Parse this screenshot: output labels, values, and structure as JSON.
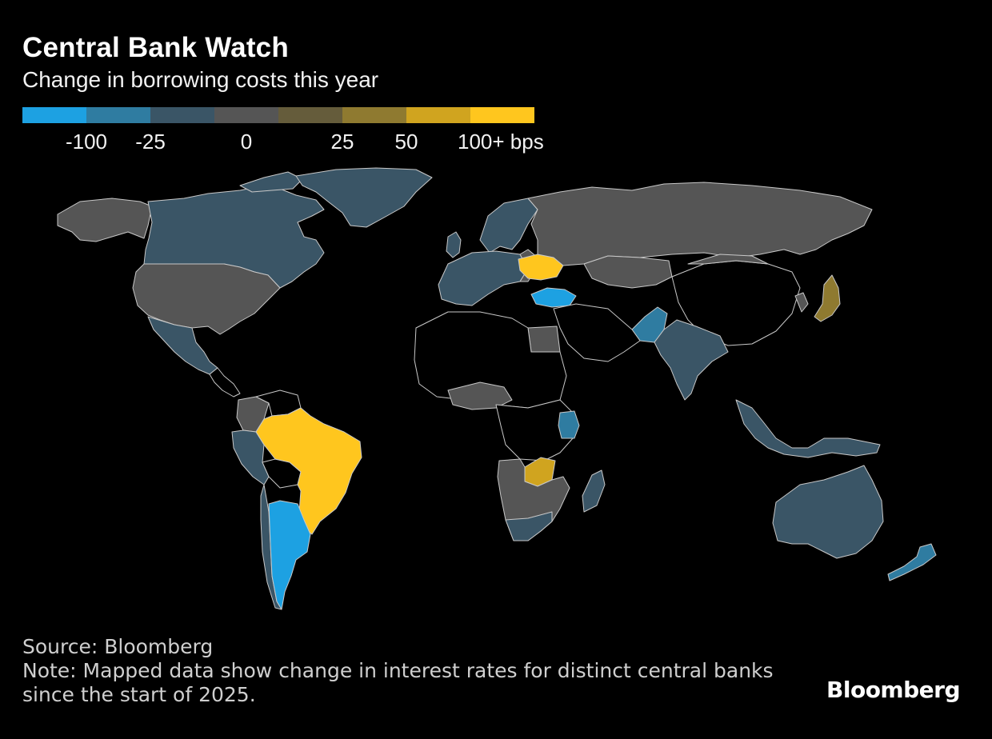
{
  "header": {
    "title": "Central Bank Watch",
    "subtitle": "Change in borrowing costs this year"
  },
  "legend": {
    "colors": [
      "#1da1e2",
      "#2f7ca1",
      "#3a5566",
      "#555555",
      "#655c3b",
      "#8f7a30",
      "#d0a41f",
      "#ffc61e"
    ],
    "labels": [
      "-100",
      "-25",
      "0",
      "25",
      "50",
      "100+ bps"
    ]
  },
  "map_colors": {
    "no_data": "#000000",
    "unchanged": "#555555",
    "cut_small": "#3a5566",
    "cut_mid": "#2f7ca1",
    "cut_large": "#1da1e2",
    "hike_small": "#8f7a30",
    "hike_mid": "#d0a41f",
    "hike_large": "#ffc61e",
    "border": "#c8c8c8"
  },
  "countries": [
    {
      "name": "Canada",
      "band": "cut_small"
    },
    {
      "name": "Alaska (US)",
      "band": "unchanged"
    },
    {
      "name": "United States",
      "band": "unchanged"
    },
    {
      "name": "Greenland",
      "band": "cut_small"
    },
    {
      "name": "Mexico",
      "band": "cut_small"
    },
    {
      "name": "Brazil",
      "band": "hike_large"
    },
    {
      "name": "Argentina",
      "band": "cut_large"
    },
    {
      "name": "Peru",
      "band": "cut_small"
    },
    {
      "name": "Colombia",
      "band": "unchanged"
    },
    {
      "name": "Chile",
      "band": "cut_small"
    },
    {
      "name": "Russia",
      "band": "unchanged"
    },
    {
      "name": "Ukraine",
      "band": "hike_large"
    },
    {
      "name": "Turkey",
      "band": "cut_large"
    },
    {
      "name": "Pakistan",
      "band": "cut_mid"
    },
    {
      "name": "India",
      "band": "cut_small"
    },
    {
      "name": "Japan",
      "band": "hike_small"
    },
    {
      "name": "Australia",
      "band": "cut_small"
    },
    {
      "name": "New Zealand",
      "band": "cut_mid"
    },
    {
      "name": "Zambia",
      "band": "hike_mid"
    },
    {
      "name": "Kenya",
      "band": "cut_mid"
    },
    {
      "name": "South Africa",
      "band": "cut_small"
    },
    {
      "name": "Madagascar",
      "band": "cut_small"
    }
  ],
  "footer": {
    "source": "Source: Bloomberg",
    "note_line1": "Note: Mapped data show change in interest rates for distinct central banks",
    "note_line2": "since the start of 2025."
  },
  "brand": "Bloomberg"
}
